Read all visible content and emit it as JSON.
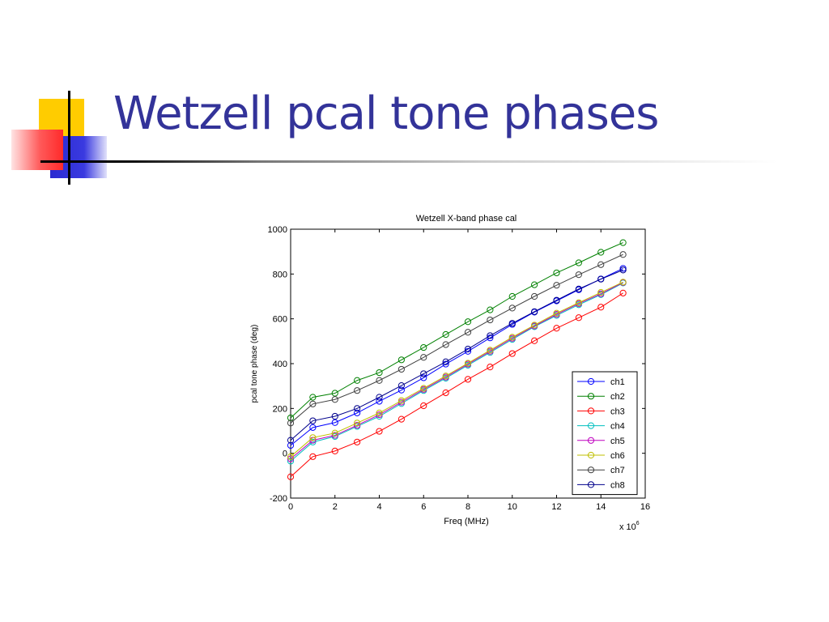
{
  "slide": {
    "title": "Wetzell pcal tone phases"
  },
  "colors": {
    "title": "#333399",
    "accent_yellow": "#ffcc00",
    "accent_blue": "#2a2ad0",
    "accent_red": "#ff3333"
  },
  "chart_data": {
    "type": "line",
    "title": "Wetzell X-band phase cal",
    "xlabel": "Freq (MHz)",
    "ylabel": "pcal tone phase (deg)",
    "x_multiplier": "x 10",
    "x_multiplier_exp": "6",
    "xlim": [
      0,
      16
    ],
    "ylim": [
      -200,
      1000
    ],
    "xticks": [
      0,
      2,
      4,
      6,
      8,
      10,
      12,
      14,
      16
    ],
    "yticks": [
      -200,
      0,
      200,
      400,
      600,
      800,
      1000
    ],
    "grid": false,
    "legend_position": "bottom-right",
    "marker": "circle",
    "x": [
      0,
      1,
      2,
      3,
      4,
      5,
      6,
      7,
      8,
      9,
      10,
      11,
      12,
      13,
      14,
      15
    ],
    "series": [
      {
        "name": "ch1",
        "color": "#0000ff",
        "values": [
          35,
          115,
          137,
          180,
          232,
          282,
          337,
          398,
          455,
          515,
          575,
          630,
          680,
          730,
          778,
          825
        ]
      },
      {
        "name": "ch2",
        "color": "#008000",
        "values": [
          158,
          250,
          268,
          325,
          360,
          417,
          472,
          530,
          587,
          640,
          700,
          752,
          805,
          850,
          897,
          940
        ]
      },
      {
        "name": "ch3",
        "color": "#ff0000",
        "values": [
          -105,
          -15,
          10,
          50,
          98,
          152,
          212,
          270,
          330,
          385,
          445,
          502,
          558,
          605,
          652,
          715
        ]
      },
      {
        "name": "ch4",
        "color": "#00bfbf",
        "values": [
          -35,
          50,
          75,
          120,
          165,
          222,
          280,
          335,
          393,
          450,
          508,
          565,
          615,
          663,
          708,
          760
        ]
      },
      {
        "name": "ch5",
        "color": "#bf00bf",
        "values": [
          -25,
          58,
          80,
          125,
          172,
          228,
          285,
          340,
          398,
          455,
          513,
          568,
          620,
          668,
          712,
          762
        ]
      },
      {
        "name": "ch6",
        "color": "#bfbf00",
        "values": [
          -15,
          70,
          90,
          135,
          180,
          235,
          290,
          345,
          402,
          460,
          518,
          572,
          625,
          672,
          718,
          764
        ]
      },
      {
        "name": "ch7",
        "color": "#404040",
        "values": [
          135,
          220,
          240,
          280,
          325,
          375,
          428,
          485,
          540,
          595,
          648,
          700,
          750,
          797,
          842,
          887
        ]
      },
      {
        "name": "ch8",
        "color": "#00008b",
        "values": [
          58,
          145,
          165,
          200,
          250,
          302,
          355,
          408,
          465,
          525,
          580,
          632,
          683,
          733,
          777,
          818
        ]
      }
    ]
  }
}
